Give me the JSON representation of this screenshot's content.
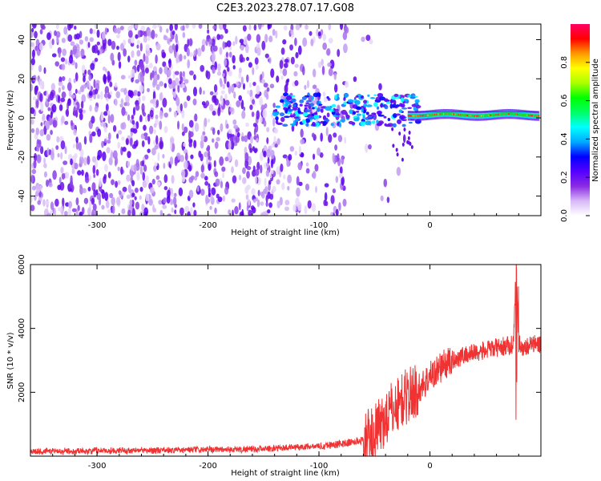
{
  "title": "C2E3.2023.278.07.17.G08",
  "chart_data": [
    {
      "type": "heatmap",
      "xlabel": "Height of straight line (km)",
      "ylabel": "Frequency (Hz)",
      "xlim": [
        -360,
        100
      ],
      "ylim": [
        -50,
        48
      ],
      "xticks": [
        -300,
        -200,
        -100,
        0
      ],
      "yticks": [
        -40,
        -20,
        0,
        20,
        40
      ],
      "colorbar": {
        "label": "Normalized spectral amplitude",
        "range": [
          0,
          1
        ],
        "ticks": [
          0.0,
          0.2,
          0.4,
          0.6,
          0.8
        ],
        "colormap": [
          "#ffffff",
          "#d8b8f8",
          "#8a2be2",
          "#5500ff",
          "#0000ff",
          "#00aaff",
          "#00ffff",
          "#00ff66",
          "#00ff00",
          "#aaff00",
          "#ffff00",
          "#ff9900",
          "#ff0000",
          "#ff0066"
        ]
      },
      "description_points": [
        {
          "x": -120,
          "y": 6,
          "value": 0.25
        },
        {
          "x": -60,
          "y": 4,
          "value": 0.3
        },
        {
          "x": -20,
          "y": 0,
          "value": 0.6
        },
        {
          "x": 0,
          "y": 2,
          "value": 0.65
        },
        {
          "x": 50,
          "y": 2,
          "value": 0.85
        },
        {
          "x": 90,
          "y": 3,
          "value": 0.9
        }
      ]
    },
    {
      "type": "line",
      "xlabel": "Height of straight line (km)",
      "ylabel": "SNR (10 * v/v)",
      "xlim": [
        -360,
        100
      ],
      "ylim": [
        0,
        6000
      ],
      "xticks": [
        -300,
        -200,
        -100,
        0
      ],
      "yticks": [
        2000,
        4000,
        6000
      ],
      "color": "#f03232",
      "series": [
        {
          "x": [
            -360,
            -300,
            -250,
            -200,
            -150,
            -120,
            -100,
            -80,
            -60,
            -50,
            -40,
            -30,
            -20,
            -10,
            0,
            10,
            20,
            30,
            40,
            50,
            60,
            70,
            75,
            78,
            80,
            85,
            90,
            100
          ],
          "values": [
            150,
            170,
            180,
            200,
            230,
            280,
            320,
            380,
            500,
            700,
            1200,
            1600,
            1900,
            2100,
            2500,
            2800,
            3000,
            3150,
            3250,
            3300,
            3400,
            3450,
            3500,
            6000,
            3500,
            3400,
            3500,
            3500
          ]
        }
      ]
    }
  ]
}
